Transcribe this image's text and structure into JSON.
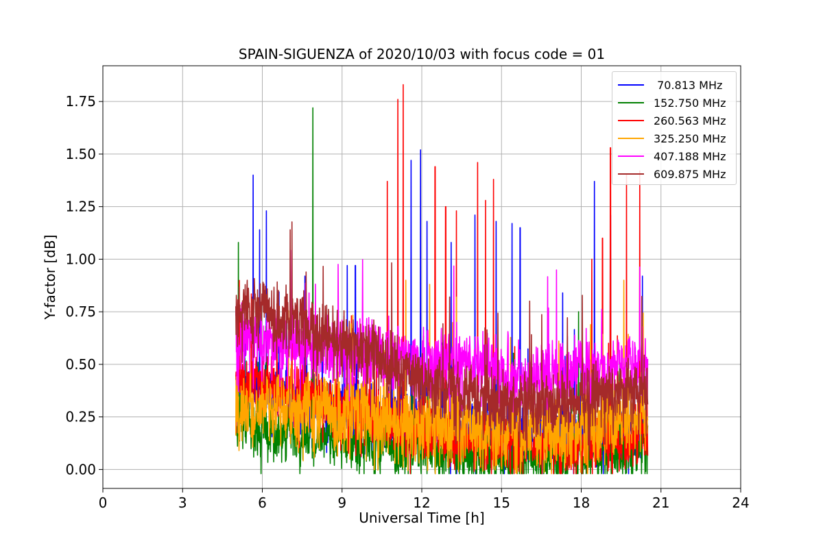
{
  "chart_data": {
    "type": "line",
    "title": "SPAIN-SIGUENZA of 2020/10/03 with focus code = 01",
    "xlabel": "Universal Time [h]",
    "ylabel": "Y-factor [dB]",
    "xlim": [
      0,
      24
    ],
    "ylim": [
      -0.09,
      1.92
    ],
    "xticks": [
      0,
      3,
      6,
      9,
      12,
      15,
      18,
      21,
      24
    ],
    "yticks": [
      "0.00",
      "0.25",
      "0.50",
      "0.75",
      "1.00",
      "1.25",
      "1.50",
      "1.75"
    ],
    "grid": true,
    "legend_position": "top-right",
    "data_range_hours": [
      5.0,
      20.5
    ],
    "series": [
      {
        "name": " 70.813 MHz",
        "color": "#0000ff",
        "baseline": [
          [
            5.0,
            0.4
          ],
          [
            6.0,
            0.38
          ],
          [
            8.0,
            0.3
          ],
          [
            10.0,
            0.28
          ],
          [
            12.0,
            0.22
          ],
          [
            14.0,
            0.18
          ],
          [
            16.0,
            0.16
          ],
          [
            18.0,
            0.18
          ],
          [
            20.5,
            0.22
          ]
        ],
        "spikes": [
          [
            5.65,
            1.4
          ],
          [
            5.9,
            1.14
          ],
          [
            6.15,
            1.23
          ],
          [
            7.6,
            0.92
          ],
          [
            9.2,
            0.97
          ],
          [
            9.5,
            0.97
          ],
          [
            11.6,
            1.47
          ],
          [
            11.95,
            1.52
          ],
          [
            12.2,
            1.18
          ],
          [
            13.1,
            1.08
          ],
          [
            14.0,
            1.21
          ],
          [
            14.8,
            1.18
          ],
          [
            15.4,
            1.17
          ],
          [
            15.7,
            1.15
          ],
          [
            17.3,
            0.84
          ],
          [
            18.5,
            1.37
          ],
          [
            19.1,
            1.21
          ],
          [
            20.3,
            0.92
          ]
        ]
      },
      {
        "name": "152.750 MHz",
        "color": "#008000",
        "baseline": [
          [
            5.0,
            0.22
          ],
          [
            6.0,
            0.2
          ],
          [
            8.0,
            0.16
          ],
          [
            10.0,
            0.12
          ],
          [
            12.0,
            0.1
          ],
          [
            14.0,
            0.07
          ],
          [
            16.0,
            0.06
          ],
          [
            18.0,
            0.07
          ],
          [
            20.5,
            0.12
          ]
        ],
        "spikes": [
          [
            5.1,
            1.08
          ],
          [
            7.9,
            1.72
          ],
          [
            17.9,
            0.75
          ]
        ]
      },
      {
        "name": "260.563 MHz",
        "color": "#ff0000",
        "baseline": [
          [
            5.0,
            0.42
          ],
          [
            6.0,
            0.4
          ],
          [
            8.0,
            0.33
          ],
          [
            10.0,
            0.26
          ],
          [
            12.0,
            0.2
          ],
          [
            14.0,
            0.14
          ],
          [
            16.0,
            0.12
          ],
          [
            18.0,
            0.12
          ],
          [
            20.5,
            0.18
          ]
        ],
        "spikes": [
          [
            10.7,
            1.37
          ],
          [
            11.1,
            1.76
          ],
          [
            11.3,
            1.83
          ],
          [
            12.5,
            1.44
          ],
          [
            12.9,
            1.25
          ],
          [
            13.3,
            1.23
          ],
          [
            14.1,
            1.46
          ],
          [
            14.4,
            1.28
          ],
          [
            14.7,
            1.38
          ],
          [
            18.4,
            1.0
          ],
          [
            18.8,
            1.1
          ],
          [
            19.1,
            1.53
          ],
          [
            19.7,
            1.4
          ],
          [
            20.2,
            1.42
          ]
        ]
      },
      {
        "name": "325.250 MHz",
        "color": "#ffa500",
        "baseline": [
          [
            5.0,
            0.3
          ],
          [
            6.0,
            0.3
          ],
          [
            8.0,
            0.28
          ],
          [
            10.0,
            0.25
          ],
          [
            12.0,
            0.22
          ],
          [
            14.0,
            0.2
          ],
          [
            16.0,
            0.18
          ],
          [
            18.0,
            0.2
          ],
          [
            20.5,
            0.25
          ]
        ],
        "spikes": [
          [
            11.4,
            0.9
          ],
          [
            12.3,
            0.88
          ],
          [
            13.3,
            0.82
          ],
          [
            19.6,
            0.9
          ]
        ]
      },
      {
        "name": "407.188 MHz",
        "color": "#ff00ff",
        "baseline": [
          [
            5.0,
            0.62
          ],
          [
            6.0,
            0.61
          ],
          [
            8.0,
            0.58
          ],
          [
            10.0,
            0.56
          ],
          [
            12.0,
            0.52
          ],
          [
            14.0,
            0.5
          ],
          [
            16.0,
            0.45
          ],
          [
            18.0,
            0.48
          ],
          [
            20.5,
            0.5
          ]
        ],
        "spikes": []
      },
      {
        "name": "609.875 MHz",
        "color": "#a52a2a",
        "baseline": [
          [
            5.0,
            0.75
          ],
          [
            6.0,
            0.76
          ],
          [
            7.0,
            0.71
          ],
          [
            8.0,
            0.65
          ],
          [
            9.0,
            0.62
          ],
          [
            10.0,
            0.57
          ],
          [
            11.0,
            0.48
          ],
          [
            12.0,
            0.43
          ],
          [
            13.0,
            0.38
          ],
          [
            14.0,
            0.35
          ],
          [
            15.0,
            0.32
          ],
          [
            16.0,
            0.32
          ],
          [
            17.0,
            0.3
          ],
          [
            18.0,
            0.33
          ],
          [
            19.0,
            0.35
          ],
          [
            20.0,
            0.38
          ],
          [
            20.5,
            0.37
          ]
        ],
        "spikes": []
      }
    ]
  }
}
